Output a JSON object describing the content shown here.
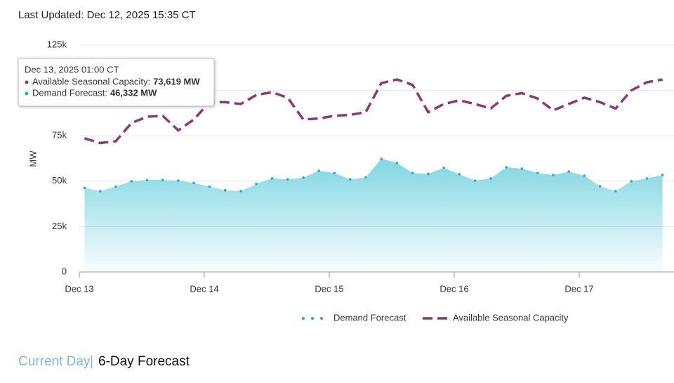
{
  "header": {
    "last_updated": "Last Updated: Dec 12, 2025 15:35 CT"
  },
  "chart_data": {
    "type": "line",
    "y_label": "MW",
    "x": [
      1,
      4,
      7,
      10,
      13,
      16,
      19,
      22,
      25,
      28,
      31,
      34,
      37,
      40,
      43,
      46,
      49,
      52,
      55,
      58,
      61,
      64,
      67,
      70,
      73,
      76,
      79,
      82,
      85,
      88,
      91,
      94,
      97,
      100,
      103,
      106,
      109,
      112
    ],
    "xlim": [
      0,
      114
    ],
    "xticks": [
      {
        "value": 0,
        "label": "Dec 13"
      },
      {
        "value": 24,
        "label": "Dec 14"
      },
      {
        "value": 48,
        "label": "Dec 15"
      },
      {
        "value": 72,
        "label": "Dec 16"
      },
      {
        "value": 96,
        "label": "Dec 17"
      }
    ],
    "ylim": [
      0,
      125000
    ],
    "yticks": [
      0,
      {
        "value": 25000,
        "label": "25k"
      },
      {
        "value": 50000,
        "label": "50k"
      },
      {
        "value": 75000,
        "label": "75k"
      },
      {
        "value": 100000,
        "label": "100k"
      },
      {
        "value": 125000,
        "label": "125k"
      }
    ],
    "grid": true,
    "series": [
      {
        "name": "Demand Forecast",
        "color": "#1ab4c9",
        "style": "dotted",
        "area": true,
        "values": [
          46332,
          44500,
          47000,
          50000,
          50700,
          50700,
          50300,
          49000,
          47000,
          45000,
          44500,
          48500,
          51500,
          51000,
          52000,
          55700,
          54500,
          51000,
          52000,
          62300,
          60000,
          54500,
          54000,
          57300,
          53800,
          50300,
          51500,
          57700,
          56900,
          54500,
          53400,
          55300,
          53000,
          47200,
          44500,
          50000,
          51500,
          53400
        ]
      },
      {
        "name": "Available Seasonal Capacity",
        "color": "#8e3a6e",
        "style": "dashed",
        "values": [
          73619,
          71000,
          72000,
          82000,
          85500,
          86000,
          78000,
          84000,
          93500,
          93500,
          92500,
          97500,
          99000,
          96000,
          84000,
          84500,
          86000,
          86500,
          88000,
          104000,
          106000,
          103000,
          88000,
          92500,
          94500,
          92500,
          90000,
          97000,
          98500,
          95500,
          89000,
          92500,
          96000,
          93500,
          90000,
          100000,
          104500,
          106000
        ]
      }
    ],
    "tooltip": {
      "title": "Dec 13, 2025 01:00 CT",
      "rows": [
        {
          "label": "Available Seasonal Capacity:",
          "value": "73,619 MW"
        },
        {
          "label": "Demand Forecast:",
          "value": "46,332 MW"
        }
      ]
    }
  },
  "tabs": {
    "items": [
      "Current Day",
      "6-Day Forecast"
    ],
    "separator": "|"
  }
}
